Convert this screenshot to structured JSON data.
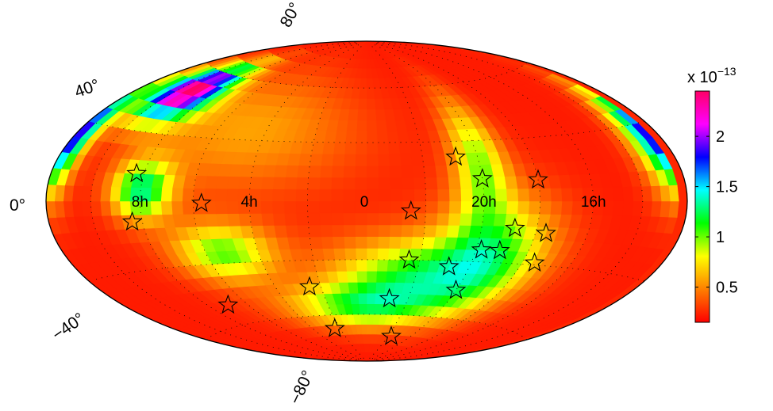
{
  "chart_data": {
    "type": "heatmap",
    "projection": "hammer-aitoff (all-sky)",
    "title": "",
    "ra_tick_labels": [
      "8h",
      "4h",
      "0",
      "20h",
      "16h"
    ],
    "dec_tick_labels": [
      "80°",
      "40°",
      "0°",
      "−40°",
      "−80°"
    ],
    "colorbar": {
      "multiplier_base": "x 10",
      "multiplier_exp": "−13",
      "ticks": [
        0.5,
        1,
        1.5,
        2
      ],
      "tick_labels": [
        "0.5",
        "1",
        "1.5",
        "2"
      ],
      "range": [
        0.15,
        2.45
      ],
      "colormap": [
        "#ff0000",
        "#ff7f00",
        "#ffff00",
        "#00ff00",
        "#00ffff",
        "#0000ff",
        "#ff00ff",
        "#ff0066"
      ]
    },
    "sources": [
      {
        "ra_h": 8.3,
        "dec_deg": 12
      },
      {
        "ra_h": 8.4,
        "dec_deg": -9
      },
      {
        "ra_h": 5.7,
        "dec_deg": -1
      },
      {
        "ra_h": 7.0,
        "dec_deg": -50
      },
      {
        "ra_h": 2.5,
        "dec_deg": -44
      },
      {
        "ra_h": 2.4,
        "dec_deg": -68
      },
      {
        "ra_h": 22.5,
        "dec_deg": -5
      },
      {
        "ra_h": 22.4,
        "dec_deg": -30
      },
      {
        "ra_h": 22.9,
        "dec_deg": -51
      },
      {
        "ra_h": 21.7,
        "dec_deg": -73
      },
      {
        "ra_h": 20.8,
        "dec_deg": 22
      },
      {
        "ra_h": 20.0,
        "dec_deg": 11
      },
      {
        "ra_h": 18.0,
        "dec_deg": 10
      },
      {
        "ra_h": 18.8,
        "dec_deg": -13
      },
      {
        "ra_h": 17.6,
        "dec_deg": -15
      },
      {
        "ra_h": 19.8,
        "dec_deg": -24
      },
      {
        "ra_h": 19.1,
        "dec_deg": -24
      },
      {
        "ra_h": 20.8,
        "dec_deg": -33
      },
      {
        "ra_h": 17.5,
        "dec_deg": -29
      },
      {
        "ra_h": 20.0,
        "dec_deg": -45
      }
    ]
  }
}
